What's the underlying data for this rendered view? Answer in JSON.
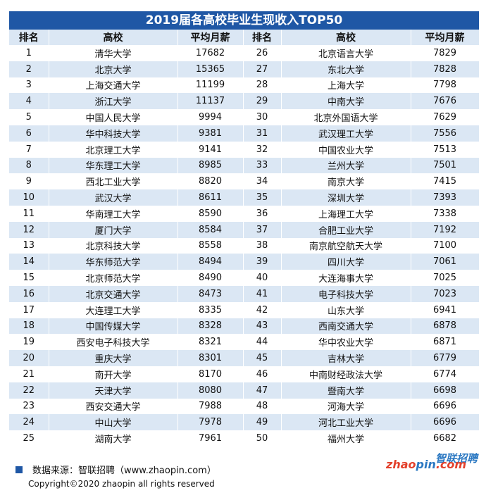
{
  "title": "2019届各高校毕业生现收入TOP50",
  "headers": {
    "rank": "排名",
    "school": "高校",
    "salary": "平均月薪"
  },
  "rows": [
    {
      "r1": "1",
      "s1": "清华大学",
      "v1": "17682",
      "r2": "26",
      "s2": "北京语言大学",
      "v2": "7829"
    },
    {
      "r1": "2",
      "s1": "北京大学",
      "v1": "15365",
      "r2": "27",
      "s2": "东北大学",
      "v2": "7828"
    },
    {
      "r1": "3",
      "s1": "上海交通大学",
      "v1": "11199",
      "r2": "28",
      "s2": "上海大学",
      "v2": "7798"
    },
    {
      "r1": "4",
      "s1": "浙江大学",
      "v1": "11137",
      "r2": "29",
      "s2": "中南大学",
      "v2": "7676"
    },
    {
      "r1": "5",
      "s1": "中国人民大学",
      "v1": "9994",
      "r2": "30",
      "s2": "北京外国语大学",
      "v2": "7629"
    },
    {
      "r1": "6",
      "s1": "华中科技大学",
      "v1": "9381",
      "r2": "31",
      "s2": "武汉理工大学",
      "v2": "7556"
    },
    {
      "r1": "7",
      "s1": "北京理工大学",
      "v1": "9141",
      "r2": "32",
      "s2": "中国农业大学",
      "v2": "7513"
    },
    {
      "r1": "8",
      "s1": "华东理工大学",
      "v1": "8985",
      "r2": "33",
      "s2": "兰州大学",
      "v2": "7501"
    },
    {
      "r1": "9",
      "s1": "西北工业大学",
      "v1": "8820",
      "r2": "34",
      "s2": "南京大学",
      "v2": "7415"
    },
    {
      "r1": "10",
      "s1": "武汉大学",
      "v1": "8611",
      "r2": "35",
      "s2": "深圳大学",
      "v2": "7393"
    },
    {
      "r1": "11",
      "s1": "华南理工大学",
      "v1": "8590",
      "r2": "36",
      "s2": "上海理工大学",
      "v2": "7338"
    },
    {
      "r1": "12",
      "s1": "厦门大学",
      "v1": "8584",
      "r2": "37",
      "s2": "合肥工业大学",
      "v2": "7192"
    },
    {
      "r1": "13",
      "s1": "北京科技大学",
      "v1": "8558",
      "r2": "38",
      "s2": "南京航空航天大学",
      "v2": "7100"
    },
    {
      "r1": "14",
      "s1": "华东师范大学",
      "v1": "8494",
      "r2": "39",
      "s2": "四川大学",
      "v2": "7061"
    },
    {
      "r1": "15",
      "s1": "北京师范大学",
      "v1": "8490",
      "r2": "40",
      "s2": "大连海事大学",
      "v2": "7025"
    },
    {
      "r1": "16",
      "s1": "北京交通大学",
      "v1": "8473",
      "r2": "41",
      "s2": "电子科技大学",
      "v2": "7023"
    },
    {
      "r1": "17",
      "s1": "大连理工大学",
      "v1": "8335",
      "r2": "42",
      "s2": "山东大学",
      "v2": "6941"
    },
    {
      "r1": "18",
      "s1": "中国传媒大学",
      "v1": "8328",
      "r2": "43",
      "s2": "西南交通大学",
      "v2": "6878"
    },
    {
      "r1": "19",
      "s1": "西安电子科技大学",
      "v1": "8321",
      "r2": "44",
      "s2": "华中农业大学",
      "v2": "6871"
    },
    {
      "r1": "20",
      "s1": "重庆大学",
      "v1": "8301",
      "r2": "45",
      "s2": "吉林大学",
      "v2": "6779"
    },
    {
      "r1": "21",
      "s1": "南开大学",
      "v1": "8170",
      "r2": "46",
      "s2": "中南财经政法大学",
      "v2": "6774"
    },
    {
      "r1": "22",
      "s1": "天津大学",
      "v1": "8080",
      "r2": "47",
      "s2": "暨南大学",
      "v2": "6698"
    },
    {
      "r1": "23",
      "s1": "西安交通大学",
      "v1": "7988",
      "r2": "48",
      "s2": "河海大学",
      "v2": "6696"
    },
    {
      "r1": "24",
      "s1": "中山大学",
      "v1": "7978",
      "r2": "49",
      "s2": "河北工业大学",
      "v2": "6696"
    },
    {
      "r1": "25",
      "s1": "湖南大学",
      "v1": "7961",
      "r2": "50",
      "s2": "福州大学",
      "v2": "6682"
    }
  ],
  "footer": {
    "source": "数据来源：智联招聘（www.zhaopin.com）",
    "copyright": "Copyright©2020 zhaopin all rights reserved"
  },
  "logo": {
    "cn": "智联招聘",
    "en_a": "zhao",
    "en_b": "pin",
    "en_c": ".com"
  },
  "colors": {
    "header_blue": "#1f57a5",
    "stripe": "#dbe7f4",
    "logo_red": "#e3412c",
    "logo_blue": "#2b78c2"
  }
}
